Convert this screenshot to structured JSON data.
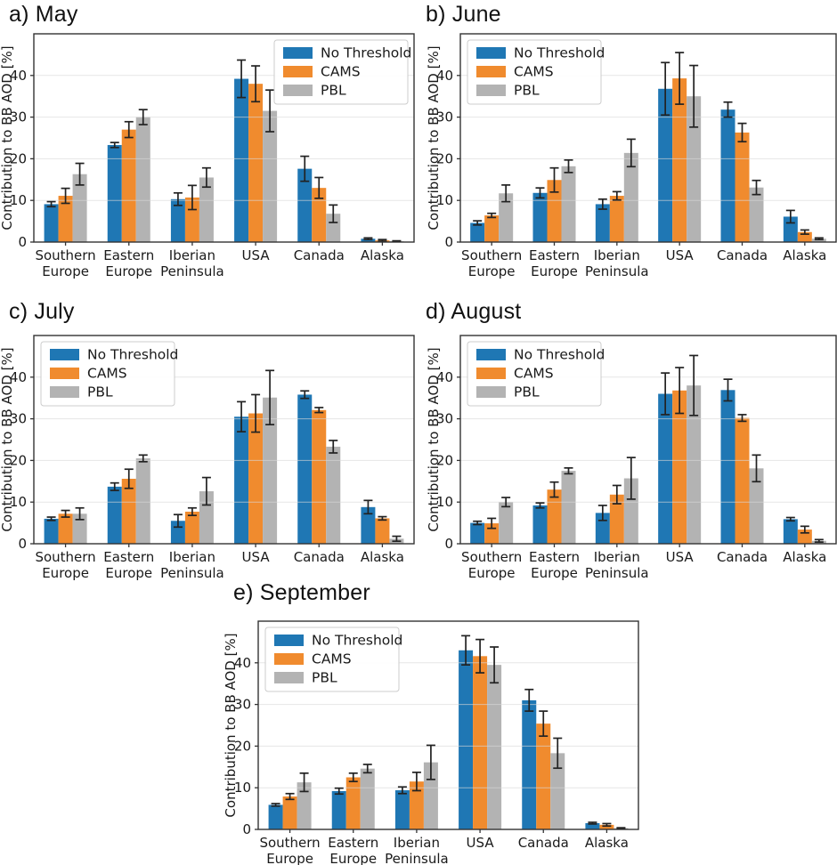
{
  "figure": {
    "ylabel": "Contribution to BB AOD [%]",
    "legend_labels": [
      "No Threshold",
      "CAMS",
      "PBL"
    ],
    "colors": {
      "no_threshold": "#1f77b4",
      "cams": "#f08b2e",
      "pbl": "#b3b3b3",
      "error_bar": "#222222",
      "grid": "#d9d9d9",
      "spine": "#333333"
    }
  },
  "chart_data": [
    {
      "type": "bar",
      "title": "a) May",
      "ylabel": "Contribution to BB AOD [%]",
      "categories": [
        "Southern Europe",
        "Eastern Europe",
        "Iberian Peninsula",
        "USA",
        "Canada",
        "Alaska"
      ],
      "ylim": [
        0,
        50
      ],
      "yticks": [
        0,
        10,
        20,
        30,
        40
      ],
      "grid": true,
      "legend_position": "upper-right",
      "series": [
        {
          "name": "No Threshold",
          "color": "#1f77b4",
          "values": [
            9.1,
            23.3,
            10.3,
            39.2,
            17.6,
            0.8
          ],
          "errors": [
            0.6,
            0.6,
            1.5,
            4.5,
            3.0,
            0.2
          ]
        },
        {
          "name": "CAMS",
          "color": "#f08b2e",
          "values": [
            11.1,
            27.0,
            10.7,
            38.0,
            13.0,
            0.4
          ],
          "errors": [
            1.8,
            1.9,
            2.9,
            4.3,
            2.5,
            0.2
          ]
        },
        {
          "name": "PBL",
          "color": "#b3b3b3",
          "values": [
            16.3,
            30.0,
            15.5,
            31.5,
            6.8,
            0.2
          ],
          "errors": [
            2.6,
            1.8,
            2.3,
            5.0,
            2.1,
            0.1
          ]
        }
      ]
    },
    {
      "type": "bar",
      "title": "b) June",
      "ylabel": "Contribution to BB AOD [%]",
      "categories": [
        "Southern Europe",
        "Eastern Europe",
        "Iberian Peninsula",
        "USA",
        "Canada",
        "Alaska"
      ],
      "ylim": [
        0,
        50
      ],
      "yticks": [
        0,
        10,
        20,
        30,
        40
      ],
      "grid": true,
      "legend_position": "upper-left",
      "series": [
        {
          "name": "No Threshold",
          "color": "#1f77b4",
          "values": [
            4.6,
            11.8,
            9.1,
            36.8,
            31.8,
            6.1
          ],
          "errors": [
            0.5,
            1.2,
            1.2,
            6.3,
            1.8,
            1.5
          ]
        },
        {
          "name": "CAMS",
          "color": "#f08b2e",
          "values": [
            6.4,
            14.9,
            11.1,
            39.3,
            26.3,
            2.4
          ],
          "errors": [
            0.5,
            2.9,
            1.0,
            6.2,
            2.2,
            0.5
          ]
        },
        {
          "name": "PBL",
          "color": "#b3b3b3",
          "values": [
            11.7,
            18.2,
            21.4,
            35.0,
            13.1,
            0.8
          ],
          "errors": [
            2.0,
            1.5,
            3.3,
            7.4,
            1.7,
            0.2
          ]
        }
      ]
    },
    {
      "type": "bar",
      "title": "c) July",
      "ylabel": "Contribution to BB AOD [%]",
      "categories": [
        "Southern Europe",
        "Eastern Europe",
        "Iberian Peninsula",
        "USA",
        "Canada",
        "Alaska"
      ],
      "ylim": [
        0,
        50
      ],
      "yticks": [
        0,
        10,
        20,
        30,
        40
      ],
      "grid": true,
      "legend_position": "upper-left",
      "series": [
        {
          "name": "No Threshold",
          "color": "#1f77b4",
          "values": [
            6.0,
            13.7,
            5.5,
            30.5,
            35.8,
            8.8
          ],
          "errors": [
            0.4,
            0.9,
            1.5,
            3.6,
            0.9,
            1.6
          ]
        },
        {
          "name": "CAMS",
          "color": "#f08b2e",
          "values": [
            7.2,
            15.6,
            7.7,
            31.3,
            32.1,
            6.1
          ],
          "errors": [
            0.8,
            2.3,
            0.9,
            4.5,
            0.6,
            0.4
          ]
        },
        {
          "name": "PBL",
          "color": "#b3b3b3",
          "values": [
            7.2,
            20.5,
            12.6,
            35.1,
            23.3,
            1.2
          ],
          "errors": [
            1.4,
            0.8,
            3.3,
            6.5,
            1.5,
            0.6
          ]
        }
      ]
    },
    {
      "type": "bar",
      "title": "d) August",
      "ylabel": "Contribution to BB AOD [%]",
      "categories": [
        "Southern Europe",
        "Eastern Europe",
        "Iberian Peninsula",
        "USA",
        "Canada",
        "Alaska"
      ],
      "ylim": [
        0,
        50
      ],
      "yticks": [
        0,
        10,
        20,
        30,
        40
      ],
      "grid": true,
      "legend_position": "upper-left",
      "series": [
        {
          "name": "No Threshold",
          "color": "#1f77b4",
          "values": [
            5.0,
            9.2,
            7.4,
            36.0,
            36.9,
            5.9
          ],
          "errors": [
            0.4,
            0.6,
            1.8,
            5.0,
            2.6,
            0.4
          ]
        },
        {
          "name": "CAMS",
          "color": "#f08b2e",
          "values": [
            4.9,
            13.0,
            11.8,
            36.8,
            30.2,
            3.4
          ],
          "errors": [
            1.2,
            1.8,
            2.2,
            5.5,
            0.8,
            0.8
          ]
        },
        {
          "name": "PBL",
          "color": "#b3b3b3",
          "values": [
            10.0,
            17.5,
            15.7,
            38.0,
            18.1,
            0.7
          ],
          "errors": [
            1.1,
            0.7,
            5.0,
            7.2,
            3.2,
            0.3
          ]
        }
      ]
    },
    {
      "type": "bar",
      "title": "e) September",
      "ylabel": "Contribution to BB AOD [%]",
      "categories": [
        "Southern Europe",
        "Eastern Europe",
        "Iberian Peninsula",
        "USA",
        "Canada",
        "Alaska"
      ],
      "ylim": [
        0,
        50
      ],
      "yticks": [
        0,
        10,
        20,
        30,
        40
      ],
      "grid": true,
      "legend_position": "upper-left",
      "series": [
        {
          "name": "No Threshold",
          "color": "#1f77b4",
          "values": [
            5.9,
            9.2,
            9.4,
            43.0,
            31.0,
            1.5
          ],
          "errors": [
            0.3,
            0.7,
            0.8,
            3.5,
            2.6,
            0.2
          ]
        },
        {
          "name": "CAMS",
          "color": "#f08b2e",
          "values": [
            7.9,
            12.5,
            11.5,
            41.6,
            25.4,
            1.1
          ],
          "errors": [
            0.7,
            1.0,
            2.2,
            4.0,
            3.0,
            0.3
          ]
        },
        {
          "name": "PBL",
          "color": "#b3b3b3",
          "values": [
            11.3,
            14.6,
            16.1,
            39.5,
            18.3,
            0.3
          ],
          "errors": [
            2.2,
            1.0,
            4.1,
            4.3,
            3.6,
            0.1
          ]
        }
      ]
    }
  ]
}
